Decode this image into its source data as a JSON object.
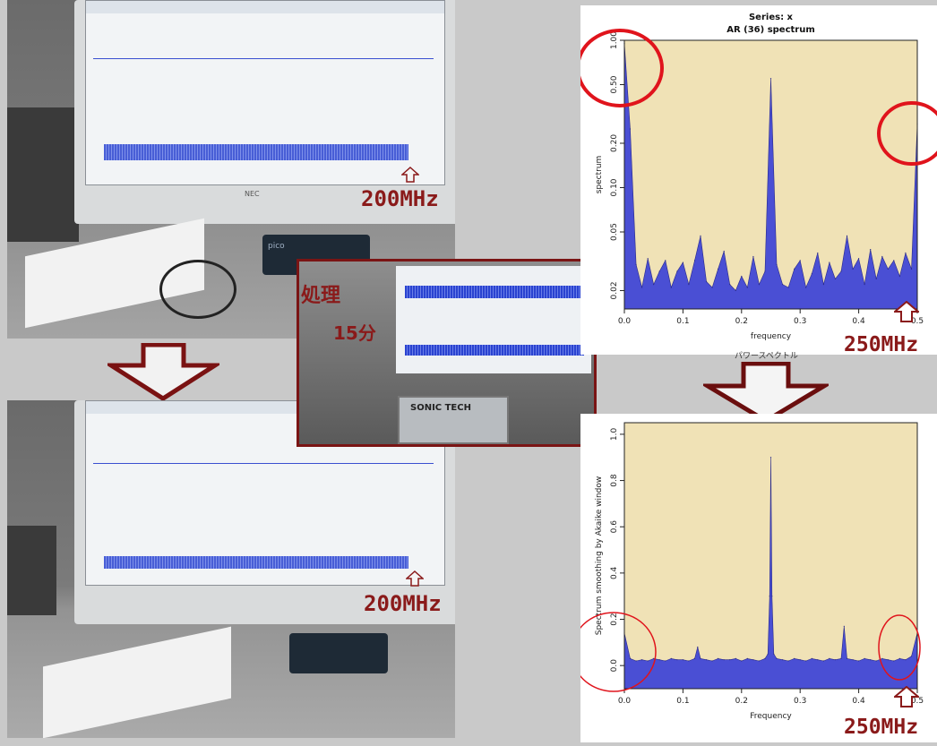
{
  "photos": {
    "top_label": "200MHz",
    "bottom_label": "200MHz",
    "monitor_brand": "NEC",
    "device_brand": "pico"
  },
  "inset": {
    "title": "処理",
    "subtitle": "15分",
    "device_text": "SONIC TECH"
  },
  "top_chart": {
    "annotation": "250MHz",
    "caption": "パワースペクトル"
  },
  "bottom_chart": {
    "annotation": "250MHz"
  },
  "colors": {
    "fill": "#4a4fd4",
    "plot_bg": "#f0e2b6",
    "annotation": "#8a1a1a",
    "circle": "#e0141c"
  },
  "chart_data": [
    {
      "type": "area",
      "title": "Series: x",
      "subtitle": "AR (36) spectrum",
      "xlabel": "frequency",
      "ylabel": "spectrum",
      "log_y": true,
      "xlim": [
        0,
        0.5
      ],
      "ylim": [
        0.015,
        1.0
      ],
      "x_ticks": [
        "0.0",
        "0.1",
        "0.2",
        "0.3",
        "0.4",
        "0.5"
      ],
      "y_ticks": [
        "0.02",
        "0.05",
        "0.10",
        "0.20",
        "0.50",
        "1.00"
      ],
      "x": [
        0.0,
        0.01,
        0.02,
        0.03,
        0.04,
        0.05,
        0.06,
        0.07,
        0.08,
        0.09,
        0.1,
        0.11,
        0.12,
        0.13,
        0.14,
        0.15,
        0.16,
        0.17,
        0.18,
        0.19,
        0.2,
        0.21,
        0.22,
        0.23,
        0.24,
        0.25,
        0.26,
        0.27,
        0.28,
        0.29,
        0.3,
        0.31,
        0.32,
        0.33,
        0.34,
        0.35,
        0.36,
        0.37,
        0.38,
        0.39,
        0.4,
        0.41,
        0.42,
        0.43,
        0.44,
        0.45,
        0.46,
        0.47,
        0.48,
        0.49,
        0.5
      ],
      "y": [
        0.95,
        0.25,
        0.03,
        0.021,
        0.033,
        0.022,
        0.027,
        0.032,
        0.021,
        0.027,
        0.031,
        0.022,
        0.032,
        0.047,
        0.023,
        0.021,
        0.028,
        0.037,
        0.022,
        0.02,
        0.025,
        0.021,
        0.034,
        0.022,
        0.027,
        0.55,
        0.03,
        0.022,
        0.021,
        0.028,
        0.032,
        0.021,
        0.026,
        0.036,
        0.022,
        0.031,
        0.024,
        0.027,
        0.047,
        0.028,
        0.033,
        0.022,
        0.038,
        0.024,
        0.034,
        0.028,
        0.032,
        0.025,
        0.036,
        0.028,
        0.27
      ]
    },
    {
      "type": "area",
      "title": "",
      "xlabel": "Frequency",
      "ylabel": "Spectrum smoothing by Akaike window",
      "log_y": false,
      "xlim": [
        0,
        0.5
      ],
      "ylim": [
        -0.1,
        1.05
      ],
      "x_ticks": [
        "0.0",
        "0.1",
        "0.2",
        "0.3",
        "0.4",
        "0.5"
      ],
      "y_ticks": [
        "0.0",
        "0.2",
        "0.4",
        "0.6",
        "0.8",
        "1.0"
      ],
      "x": [
        0.0,
        0.01,
        0.02,
        0.03,
        0.04,
        0.05,
        0.06,
        0.07,
        0.08,
        0.09,
        0.1,
        0.11,
        0.12,
        0.125,
        0.13,
        0.14,
        0.15,
        0.16,
        0.17,
        0.18,
        0.19,
        0.2,
        0.21,
        0.22,
        0.23,
        0.24,
        0.245,
        0.248,
        0.25,
        0.252,
        0.255,
        0.26,
        0.27,
        0.28,
        0.29,
        0.3,
        0.31,
        0.32,
        0.33,
        0.34,
        0.35,
        0.36,
        0.37,
        0.375,
        0.38,
        0.39,
        0.4,
        0.41,
        0.42,
        0.43,
        0.44,
        0.45,
        0.46,
        0.47,
        0.48,
        0.49,
        0.5
      ],
      "y": [
        0.14,
        0.03,
        0.02,
        0.025,
        0.02,
        0.03,
        0.025,
        0.02,
        0.03,
        0.025,
        0.025,
        0.02,
        0.03,
        0.08,
        0.03,
        0.025,
        0.02,
        0.03,
        0.025,
        0.025,
        0.03,
        0.02,
        0.03,
        0.025,
        0.02,
        0.03,
        0.05,
        0.3,
        0.9,
        0.3,
        0.05,
        0.03,
        0.025,
        0.02,
        0.03,
        0.025,
        0.02,
        0.03,
        0.025,
        0.02,
        0.03,
        0.025,
        0.03,
        0.17,
        0.03,
        0.025,
        0.02,
        0.03,
        0.025,
        0.02,
        0.03,
        0.025,
        0.02,
        0.03,
        0.025,
        0.04,
        0.14
      ]
    }
  ]
}
